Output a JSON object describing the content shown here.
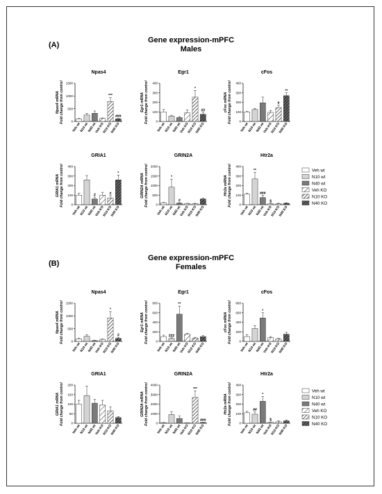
{
  "colors": {
    "Veh wt": "#ffffff",
    "N10 wt": "#d4d4d4",
    "N40 wt": "#7a7a7a",
    "Veh KO": "hatch-sparse",
    "N10 KO": "hatch-medium",
    "N40 KO": "hatch-dense",
    "axis": "#000000"
  },
  "sections": [
    {
      "panel_letter": "(A)",
      "title": "Gene expression-mPFC",
      "subtitle": "Males"
    },
    {
      "panel_letter": "(B)",
      "title": "Gene expression-mPFC",
      "subtitle": "Females"
    }
  ],
  "legend_entries": [
    "Veh wt",
    "N10 wt",
    "N40 wt",
    "Veh KO",
    "N10 KO",
    "N40 KO"
  ],
  "chart_data": [
    {
      "type": "bar",
      "section": 0,
      "title": "Npas4",
      "ylabel": "Npas4 mRNA",
      "ylabel2": "Fold change from control",
      "categories": [
        "Veh wt",
        "N10 wt",
        "N40 wt",
        "Veh KO",
        "N10 KO",
        "N40 KO"
      ],
      "values": [
        100,
        250,
        320,
        120,
        780,
        100
      ],
      "errors": [
        20,
        70,
        90,
        15,
        160,
        20
      ],
      "ylim": [
        0,
        1500
      ],
      "yticks": [
        0,
        500,
        1000,
        1500
      ],
      "annotations": [
        "",
        "",
        "",
        "",
        "***",
        "###"
      ]
    },
    {
      "type": "bar",
      "section": 0,
      "title": "Egr1",
      "ylabel": "Egr1 mRNA",
      "ylabel2": "Fold change from control",
      "categories": [
        "Veh wt",
        "N10 wt",
        "N40 wt",
        "Veh KO",
        "N10 KO",
        "N40 KO"
      ],
      "values": [
        100,
        55,
        40,
        90,
        255,
        75
      ],
      "errors": [
        25,
        10,
        10,
        30,
        70,
        20
      ],
      "ylim": [
        0,
        400
      ],
      "yticks": [
        0,
        100,
        200,
        300,
        400
      ],
      "annotations": [
        "",
        "",
        "",
        "",
        "*",
        "##"
      ]
    },
    {
      "type": "bar",
      "section": 0,
      "title": "cFos",
      "ylabel": "cFos mRNA",
      "ylabel2": "Fold change from control",
      "categories": [
        "Veh wt",
        "N10 wt",
        "N40 wt",
        "Veh KO",
        "N10 KO",
        "N40 KO"
      ],
      "values": [
        100,
        125,
        195,
        95,
        145,
        270
      ],
      "errors": [
        5,
        10,
        60,
        20,
        25,
        30
      ],
      "ylim": [
        0,
        400
      ],
      "yticks": [
        0,
        100,
        200,
        300,
        400
      ],
      "annotations": [
        "",
        "",
        "",
        "",
        "#",
        "**"
      ]
    },
    {
      "type": "bar",
      "section": 0,
      "title": "GRIA1",
      "ylabel": "GRIA1 mRNA",
      "ylabel2": "Fold change from control",
      "categories": [
        "Veh wt",
        "N10 wt",
        "N40 wt",
        "Veh KO",
        "N10 KO",
        "N40 KO"
      ],
      "values": [
        100,
        260,
        60,
        100,
        70,
        260
      ],
      "errors": [
        20,
        45,
        20,
        30,
        25,
        50
      ],
      "ylim": [
        0,
        400
      ],
      "yticks": [
        0,
        100,
        200,
        300,
        400
      ],
      "annotations": [
        "",
        "",
        "#",
        "",
        "#",
        "*"
      ]
    },
    {
      "type": "bar",
      "section": 0,
      "title": "GRIN2A",
      "ylabel": "GRIN2A mRNA",
      "ylabel2": "Fold change from control",
      "categories": [
        "Veh wt",
        "N10 wt",
        "N40 wt",
        "Veh KO",
        "N10 KO",
        "N40 KO"
      ],
      "values": [
        100,
        920,
        80,
        60,
        60,
        300
      ],
      "errors": [
        20,
        420,
        25,
        15,
        15,
        40
      ],
      "ylim": [
        0,
        2000
      ],
      "yticks": [
        0,
        500,
        1000,
        1500,
        2000
      ],
      "annotations": [
        "",
        "*",
        "#",
        "",
        "",
        ""
      ]
    },
    {
      "type": "bar",
      "section": 0,
      "title": "Htr2a",
      "ylabel": "Htr2a mRNA",
      "ylabel2": "Fold change from control",
      "categories": [
        "Veh wt",
        "N10 wt",
        "N40 wt",
        "Veh KO",
        "N10 KO",
        "N40 KO"
      ],
      "values": [
        110,
        270,
        75,
        10,
        10,
        15
      ],
      "errors": [
        10,
        70,
        25,
        5,
        5,
        5
      ],
      "ylim": [
        0,
        400
      ],
      "yticks": [
        0,
        100,
        200,
        300,
        400
      ],
      "annotations": [
        "",
        "**",
        "###",
        "$",
        "",
        ""
      ]
    },
    {
      "type": "bar",
      "section": 1,
      "title": "Npas4",
      "ylabel": "Npas4 mRNA",
      "ylabel2": "Fold change from control",
      "categories": [
        "Veh wt",
        "N10 wt",
        "N40 wt",
        "Veh KO",
        "N10 KO",
        "N40 KO"
      ],
      "values": [
        100,
        200,
        30,
        80,
        920,
        120
      ],
      "errors": [
        25,
        60,
        10,
        15,
        250,
        40
      ],
      "ylim": [
        0,
        1500
      ],
      "yticks": [
        0,
        500,
        1000,
        1500
      ],
      "annotations": [
        "",
        "",
        "",
        "",
        "*",
        "#"
      ]
    },
    {
      "type": "bar",
      "section": 1,
      "title": "Egr1",
      "ylabel": "Egr1 mRNA",
      "ylabel2": "Fold change from control",
      "categories": [
        "Veh wt",
        "N10 wt",
        "N40 wt",
        "Veh KO",
        "N10 KO",
        "N40 KO"
      ],
      "values": [
        100,
        60,
        570,
        150,
        70,
        100
      ],
      "errors": [
        30,
        15,
        170,
        20,
        15,
        20
      ],
      "ylim": [
        0,
        800
      ],
      "yticks": [
        0,
        200,
        400,
        600,
        800
      ],
      "annotations": [
        "",
        "###",
        "**",
        "",
        "",
        ""
      ]
    },
    {
      "type": "bar",
      "section": 1,
      "title": "cFos",
      "ylabel": "cFos mRNA",
      "ylabel2": "Fold change from control",
      "categories": [
        "Veh wt",
        "N10 wt",
        "N40 wt",
        "Veh KO",
        "N10 KO",
        "N40 KO"
      ],
      "values": [
        100,
        270,
        490,
        80,
        50,
        150
      ],
      "errors": [
        40,
        60,
        110,
        20,
        15,
        40
      ],
      "ylim": [
        0,
        800
      ],
      "yticks": [
        0,
        200,
        400,
        600,
        800
      ],
      "annotations": [
        "",
        "",
        "*",
        "",
        "",
        ""
      ]
    },
    {
      "type": "bar",
      "section": 1,
      "title": "GRIA1",
      "ylabel": "GRIA1 mRNA",
      "ylabel2": "Fold change from control",
      "categories": [
        "Veh wt",
        "N10 wt",
        "N40 wt",
        "Veh KO",
        "N10 KO",
        "N40 KO"
      ],
      "values": [
        100,
        145,
        105,
        95,
        65,
        30
      ],
      "errors": [
        20,
        50,
        20,
        25,
        20,
        5
      ],
      "ylim": [
        0,
        200
      ],
      "yticks": [
        0,
        50,
        100,
        150,
        200
      ],
      "annotations": [
        "",
        "",
        "",
        "",
        "",
        ""
      ]
    },
    {
      "type": "bar",
      "section": 1,
      "title": "GRIN2A",
      "ylabel": "GRIN2A mRNA",
      "ylabel2": "Fold change from control",
      "categories": [
        "Veh wt",
        "N10 wt",
        "N40 wt",
        "Veh KO",
        "N10 KO",
        "N40 KO"
      ],
      "values": [
        60,
        900,
        500,
        50,
        2700,
        80
      ],
      "errors": [
        20,
        300,
        250,
        10,
        700,
        20
      ],
      "ylim": [
        0,
        4000
      ],
      "yticks": [
        0,
        1000,
        2000,
        3000,
        4000
      ],
      "annotations": [
        "",
        "",
        "",
        "",
        "***",
        "###"
      ]
    },
    {
      "type": "bar",
      "section": 1,
      "title": "Htr2a",
      "ylabel": "Htr2a mRNA",
      "ylabel2": "Fold change from control",
      "categories": [
        "Veh wt",
        "N10 wt",
        "N40 wt",
        "Veh KO",
        "N10 KO",
        "N40 KO"
      ],
      "values": [
        110,
        95,
        230,
        10,
        15,
        25
      ],
      "errors": [
        15,
        25,
        50,
        3,
        10,
        10
      ],
      "ylim": [
        0,
        400
      ],
      "yticks": [
        0,
        100,
        200,
        300,
        400
      ],
      "annotations": [
        "",
        "##",
        "*",
        "$",
        "",
        ""
      ]
    }
  ]
}
